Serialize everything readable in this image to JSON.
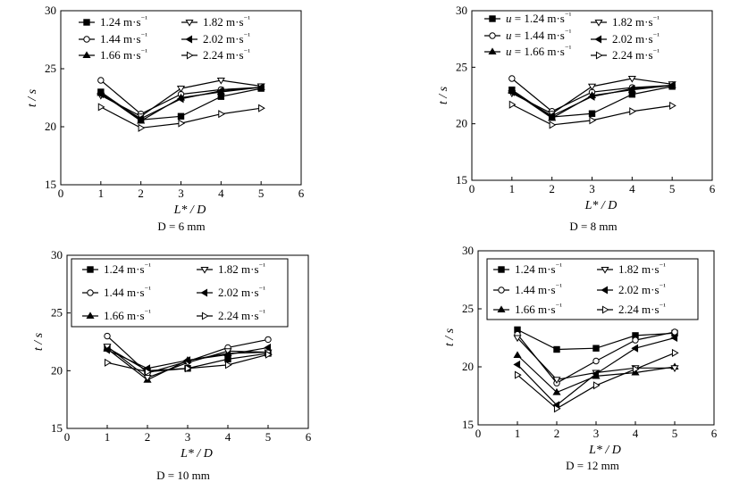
{
  "chart_data": [
    {
      "type": "line",
      "caption": "D = 6 mm",
      "xlabel": "L* / D",
      "ylabel": "t / s",
      "xlim": [
        0,
        6
      ],
      "ylim": [
        15,
        30
      ],
      "xticks": [
        "0",
        "1",
        "2",
        "3",
        "4",
        "5",
        "6"
      ],
      "yticks": [
        "15",
        "20",
        "25",
        "30"
      ],
      "x": [
        1,
        2,
        3,
        4,
        5
      ],
      "series": [
        {
          "name": "1.24 m·s⁻¹",
          "marker": "square-filled",
          "values": [
            23.0,
            20.6,
            20.9,
            22.6,
            23.3
          ]
        },
        {
          "name": "1.44 m·s⁻¹",
          "marker": "circle-open",
          "values": [
            24.0,
            21.1,
            22.8,
            23.2,
            23.4
          ]
        },
        {
          "name": "1.66 m·s⁻¹",
          "marker": "triangle-up-filled",
          "values": [
            22.9,
            20.5,
            22.5,
            23.0,
            23.4
          ]
        },
        {
          "name": "1.82 m·s⁻¹",
          "marker": "triangle-down-open",
          "values": [
            22.7,
            20.9,
            23.3,
            24.0,
            23.5
          ]
        },
        {
          "name": "2.02 m·s⁻¹",
          "marker": "triangle-left-filled",
          "values": [
            22.8,
            20.7,
            22.4,
            23.1,
            23.4
          ]
        },
        {
          "name": "2.24 m·s⁻¹",
          "marker": "triangle-right-open",
          "values": [
            21.7,
            19.9,
            20.3,
            21.1,
            21.6
          ]
        }
      ]
    },
    {
      "type": "line",
      "caption": "D = 8 mm",
      "xlabel": "L* / D",
      "ylabel": "t / s",
      "xlim": [
        0,
        6
      ],
      "ylim": [
        15,
        30
      ],
      "xticks": [
        "0",
        "1",
        "2",
        "3",
        "4",
        "5",
        "6"
      ],
      "yticks": [
        "15",
        "20",
        "25",
        "30"
      ],
      "x": [
        1,
        2,
        3,
        4,
        5
      ],
      "series": [
        {
          "name": "u = 1.24 m·s⁻¹",
          "marker": "square-filled",
          "values": [
            23.0,
            20.6,
            20.9,
            22.6,
            23.3
          ]
        },
        {
          "name": "u = 1.44 m·s⁻¹",
          "marker": "circle-open",
          "values": [
            24.0,
            21.1,
            22.8,
            23.2,
            23.4
          ]
        },
        {
          "name": "u = 1.66 m·s⁻¹",
          "marker": "triangle-up-filled",
          "values": [
            22.9,
            20.5,
            22.5,
            23.0,
            23.4
          ]
        },
        {
          "name": "1.82 m·s⁻¹",
          "marker": "triangle-down-open",
          "values": [
            22.7,
            20.9,
            23.3,
            24.0,
            23.5
          ]
        },
        {
          "name": "2.02 m·s⁻¹",
          "marker": "triangle-left-filled",
          "values": [
            22.8,
            20.7,
            22.4,
            23.1,
            23.4
          ]
        },
        {
          "name": "2.24 m·s⁻¹",
          "marker": "triangle-right-open",
          "values": [
            21.7,
            19.9,
            20.3,
            21.1,
            21.6
          ]
        }
      ]
    },
    {
      "type": "line",
      "caption": "D = 10 mm",
      "xlabel": "L* / D",
      "ylabel": "t / s",
      "xlim": [
        0,
        6
      ],
      "ylim": [
        15,
        30
      ],
      "xticks": [
        "0",
        "1",
        "2",
        "3",
        "4",
        "5",
        "6"
      ],
      "yticks": [
        "15",
        "20",
        "25",
        "30"
      ],
      "x": [
        1,
        2,
        3,
        4,
        5
      ],
      "series": [
        {
          "name": "1.24 m·s⁻¹",
          "marker": "square-filled",
          "values": [
            22.0,
            20.0,
            20.2,
            21.0,
            21.5
          ]
        },
        {
          "name": "1.44 m·s⁻¹",
          "marker": "circle-open",
          "values": [
            23.0,
            19.8,
            20.8,
            22.0,
            22.7
          ]
        },
        {
          "name": "1.66 m·s⁻¹",
          "marker": "triangle-up-filled",
          "values": [
            21.9,
            19.2,
            20.9,
            21.5,
            21.6
          ]
        },
        {
          "name": "1.82 m·s⁻¹",
          "marker": "triangle-down-open",
          "values": [
            22.1,
            19.4,
            20.7,
            21.7,
            21.6
          ]
        },
        {
          "name": "2.02 m·s⁻¹",
          "marker": "triangle-left-filled",
          "values": [
            21.8,
            20.2,
            20.9,
            21.4,
            22.0
          ]
        },
        {
          "name": "2.24 m·s⁻¹",
          "marker": "triangle-right-open",
          "values": [
            20.7,
            19.9,
            20.2,
            20.5,
            21.4
          ]
        }
      ]
    },
    {
      "type": "line",
      "caption": "D = 12 mm",
      "xlabel": "L* / D",
      "ylabel": "t / s",
      "xlim": [
        0,
        6
      ],
      "ylim": [
        15,
        30
      ],
      "xticks": [
        "0",
        "1",
        "2",
        "3",
        "4",
        "5",
        "6"
      ],
      "yticks": [
        "15",
        "20",
        "25",
        "30"
      ],
      "x": [
        1,
        2,
        3,
        4,
        5
      ],
      "series": [
        {
          "name": "1.24 m·s⁻¹",
          "marker": "square-filled",
          "values": [
            23.2,
            21.5,
            21.6,
            22.7,
            22.9
          ]
        },
        {
          "name": "1.44 m·s⁻¹",
          "marker": "circle-open",
          "values": [
            22.8,
            18.6,
            20.5,
            22.3,
            23.0
          ]
        },
        {
          "name": "1.66 m·s⁻¹",
          "marker": "triangle-up-filled",
          "values": [
            21.0,
            17.8,
            19.2,
            19.5,
            20.0
          ]
        },
        {
          "name": "1.82 m·s⁻¹",
          "marker": "triangle-down-open",
          "values": [
            22.5,
            18.9,
            19.5,
            19.9,
            19.9
          ]
        },
        {
          "name": "2.02 m·s⁻¹",
          "marker": "triangle-left-filled",
          "values": [
            20.2,
            16.7,
            19.4,
            21.6,
            22.5
          ]
        },
        {
          "name": "2.24 m·s⁻¹",
          "marker": "triangle-right-open",
          "values": [
            19.3,
            16.4,
            18.4,
            19.8,
            21.2
          ]
        }
      ]
    }
  ]
}
